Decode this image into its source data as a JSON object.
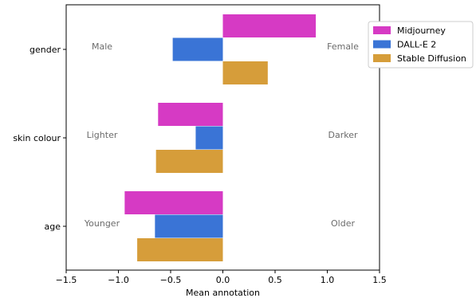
{
  "chart_data": {
    "type": "bar",
    "orientation": "horizontal",
    "categories": [
      "gender",
      "skin colour",
      "age"
    ],
    "series": [
      {
        "name": "Midjourney",
        "color": "#d63ac4",
        "values": [
          0.89,
          -0.62,
          -0.94
        ]
      },
      {
        "name": "DALL-E 2",
        "color": "#3a74d6",
        "values": [
          -0.48,
          -0.26,
          -0.65
        ]
      },
      {
        "name": "Stable Diffusion",
        "color": "#d69d3a",
        "values": [
          0.43,
          -0.64,
          -0.82
        ]
      }
    ],
    "xlabel": "Mean annotation",
    "ylabel": "",
    "xlim": [
      -1.5,
      1.5
    ],
    "xticks": [
      "−1.5",
      "−1.0",
      "−0.5",
      "0.0",
      "0.5",
      "1.0",
      "1.5"
    ],
    "xtick_values": [
      -1.5,
      -1.0,
      -0.5,
      0.0,
      0.5,
      1.0,
      1.5
    ],
    "grid": false,
    "legend_position": "top-right",
    "side_labels": [
      {
        "category": "gender",
        "left": "Male",
        "right": "Female"
      },
      {
        "category": "skin colour",
        "left": "Lighter",
        "right": "Darker"
      },
      {
        "category": "age",
        "left": "Younger",
        "right": "Older"
      }
    ]
  }
}
